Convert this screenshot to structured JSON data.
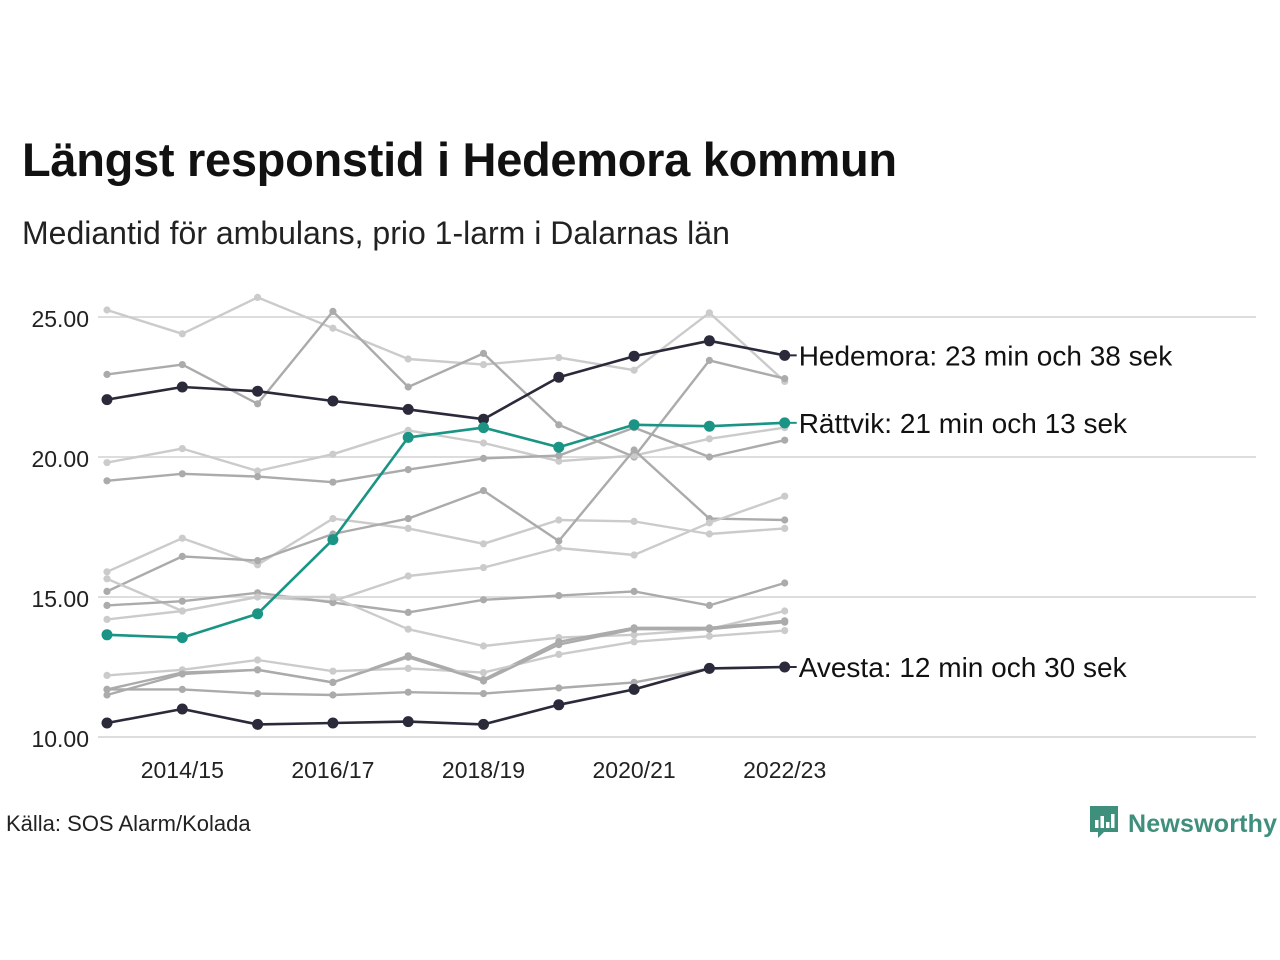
{
  "title": "Längst responstid i Hedemora kommun",
  "subtitle": "Mediantid för ambulans, prio 1-larm i Dalarnas län",
  "source": "Källa: SOS Alarm/Kolada",
  "brand": {
    "name": "Newsworthy",
    "color": "#3f8f7d",
    "icon": "newsworthy-logo-icon"
  },
  "colors": {
    "dark": "#2b2a3a",
    "teal": "#1a9485",
    "light_gray": "#cbcbcb",
    "mid_gray": "#ababab",
    "grid": "#dddddd"
  },
  "chart_data": {
    "type": "line",
    "ylim": [
      10,
      25
    ],
    "y_ticks": [
      "10.00",
      "15.00",
      "20.00",
      "25.00"
    ],
    "x": [
      "2013/14",
      "2014/15",
      "2015/16",
      "2016/17",
      "2017/18",
      "2018/19",
      "2019/20",
      "2020/21",
      "2021/22",
      "2022/23"
    ],
    "x_tick_labels": [
      "2014/15",
      "2016/17",
      "2018/19",
      "2020/21",
      "2022/23"
    ],
    "grid": "horizontal",
    "series": [
      {
        "highlight": true,
        "color": "dark",
        "label": "Hedemora: 23 min och 38 sek",
        "values": [
          22.05,
          22.5,
          22.35,
          22.0,
          21.7,
          21.35,
          22.85,
          23.6,
          24.15,
          23.63
        ]
      },
      {
        "highlight": true,
        "color": "teal",
        "label": "Rättvik: 21 min och 13 sek",
        "values": [
          13.65,
          13.55,
          14.4,
          17.05,
          20.7,
          21.05,
          20.35,
          21.15,
          21.1,
          21.22
        ]
      },
      {
        "highlight": true,
        "color": "dark",
        "label": "Avesta: 12 min och 30 sek",
        "values": [
          10.5,
          11.0,
          10.45,
          10.5,
          10.55,
          10.45,
          11.15,
          11.7,
          12.45,
          12.5
        ]
      },
      {
        "color": "light_gray",
        "values": [
          25.25,
          24.4,
          25.7,
          24.6,
          23.5,
          23.3,
          23.55,
          23.1,
          25.15,
          22.7
        ]
      },
      {
        "color": "mid_gray",
        "values": [
          22.95,
          23.3,
          21.9,
          25.2,
          22.5,
          23.7,
          21.15,
          20.0,
          23.45,
          22.8
        ]
      },
      {
        "color": "light_gray",
        "values": [
          19.8,
          20.3,
          19.5,
          20.1,
          20.95,
          20.5,
          19.85,
          20.05,
          20.65,
          21.05
        ]
      },
      {
        "color": "mid_gray",
        "values": [
          19.15,
          19.4,
          19.3,
          19.1,
          19.55,
          19.95,
          20.05,
          21.05,
          20.0,
          20.6
        ]
      },
      {
        "color": "light_gray",
        "values": [
          15.9,
          17.1,
          16.15,
          17.8,
          17.45,
          16.9,
          17.75,
          17.7,
          17.25,
          17.45
        ]
      },
      {
        "color": "mid_gray",
        "values": [
          15.2,
          16.45,
          16.3,
          17.25,
          17.8,
          18.8,
          17.0,
          20.25,
          17.8,
          17.75
        ]
      },
      {
        "color": "light_gray",
        "values": [
          15.65,
          14.5,
          15.0,
          14.85,
          15.75,
          16.05,
          16.75,
          16.5,
          17.65,
          18.6
        ]
      },
      {
        "color": "mid_gray",
        "values": [
          14.7,
          14.85,
          15.15,
          14.8,
          14.45,
          14.9,
          15.05,
          15.2,
          14.7,
          15.5
        ]
      },
      {
        "color": "light_gray",
        "values": [
          14.2,
          14.5,
          15.0,
          15.0,
          13.85,
          13.25,
          13.55,
          13.65,
          13.85,
          14.5
        ]
      },
      {
        "color": "mid_gray",
        "values": [
          11.7,
          12.3,
          12.4,
          11.95,
          12.9,
          12.05,
          13.4,
          13.9,
          13.9,
          14.15
        ]
      },
      {
        "color": "light_gray",
        "values": [
          12.2,
          12.4,
          12.75,
          12.35,
          12.45,
          12.3,
          12.95,
          13.4,
          13.6,
          13.8
        ]
      },
      {
        "color": "mid_gray",
        "values": [
          11.5,
          12.25,
          12.4,
          11.95,
          12.85,
          12.0,
          13.3,
          13.85,
          13.85,
          14.1
        ]
      },
      {
        "color": "mid_gray",
        "values": [
          11.7,
          11.7,
          11.55,
          11.5,
          11.6,
          11.55,
          11.75,
          11.95,
          12.45,
          12.5
        ]
      }
    ]
  }
}
